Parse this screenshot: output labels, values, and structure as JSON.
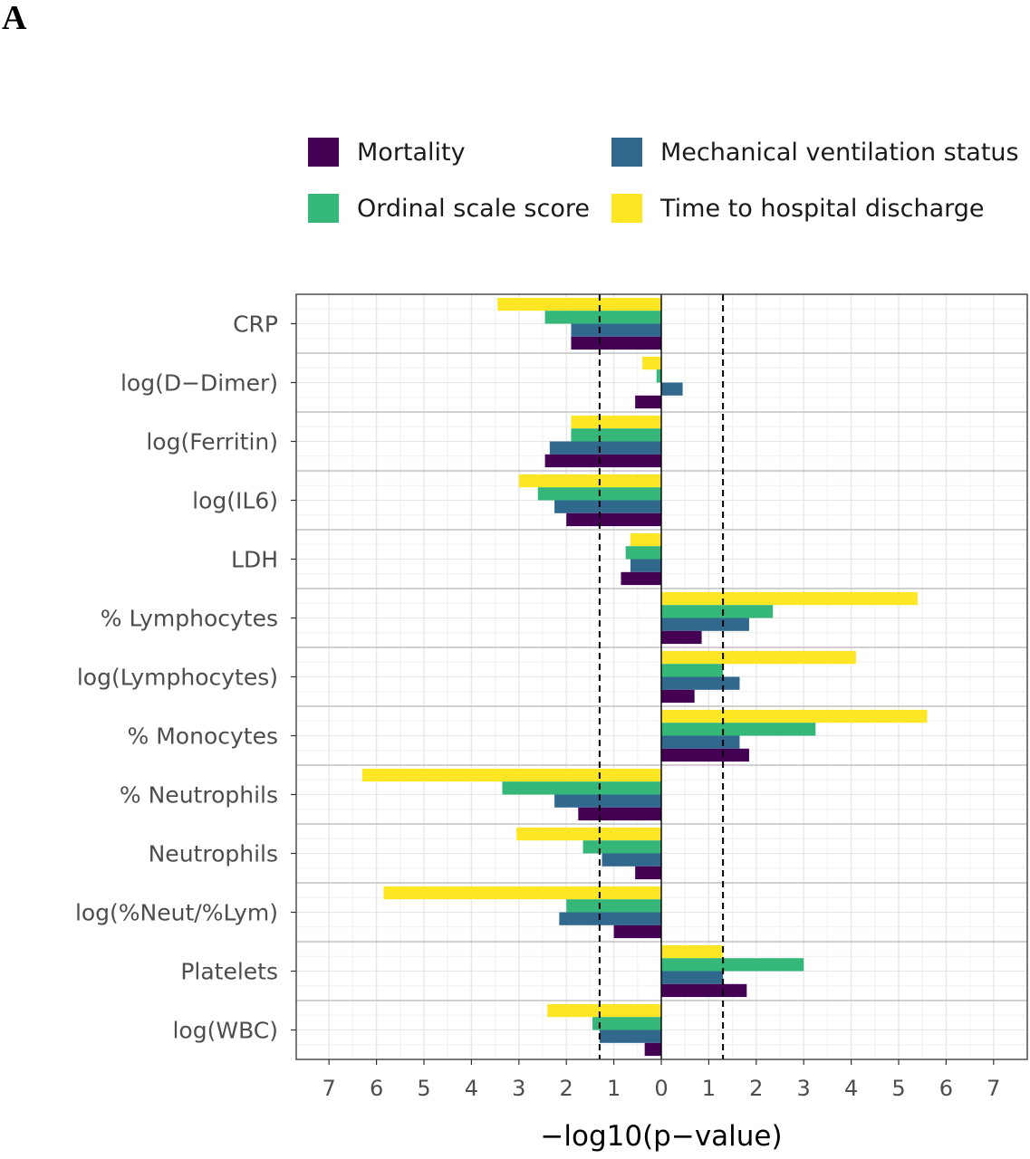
{
  "panel_label": "A",
  "legend": [
    {
      "name": "Mortality",
      "color": "#440154"
    },
    {
      "name": "Mechanical ventilation status",
      "color": "#31688e"
    },
    {
      "name": "Ordinal scale score",
      "color": "#35b779"
    },
    {
      "name": "Time to hospital discharge",
      "color": "#fde725"
    }
  ],
  "chart_data": {
    "type": "bar",
    "orientation": "horizontal",
    "xlabel": "−log10(p−value)",
    "xlim": [
      -7,
      7
    ],
    "x_ticks": [
      -7,
      -6,
      -5,
      -4,
      -3,
      -2,
      -1,
      0,
      1,
      2,
      3,
      4,
      5,
      6,
      7
    ],
    "x_tick_labels": [
      "7",
      "6",
      "5",
      "4",
      "3",
      "2",
      "1",
      "0",
      "1",
      "2",
      "3",
      "4",
      "5",
      "6",
      "7"
    ],
    "reference_lines": [
      -1.3,
      1.3
    ],
    "categories": [
      "CRP",
      "log(D−Dimer)",
      "log(Ferritin)",
      "log(IL6)",
      "LDH",
      "% Lymphocytes",
      "log(Lymphocytes)",
      "% Monocytes",
      "% Neutrophils",
      "Neutrophils",
      "log(%Neut/%Lym)",
      "Platelets",
      "log(WBC)"
    ],
    "series": [
      {
        "name": "Time to hospital discharge",
        "color": "#fde725",
        "values": [
          -3.45,
          -0.4,
          -1.9,
          -3.0,
          -0.65,
          5.4,
          4.1,
          5.6,
          -6.3,
          -3.05,
          -5.85,
          1.3,
          -2.4
        ]
      },
      {
        "name": "Ordinal scale score",
        "color": "#35b779",
        "values": [
          -2.45,
          -0.1,
          -1.9,
          -2.6,
          -0.75,
          2.35,
          1.3,
          3.25,
          -3.35,
          -1.65,
          -2.0,
          3.0,
          -1.45
        ]
      },
      {
        "name": "Mechanical ventilation status",
        "color": "#31688e",
        "values": [
          -1.9,
          0.45,
          -2.35,
          -2.25,
          -0.65,
          1.85,
          1.65,
          1.65,
          -2.25,
          -1.25,
          -2.15,
          1.3,
          -1.3
        ]
      },
      {
        "name": "Mortality",
        "color": "#440154",
        "values": [
          -1.9,
          -0.55,
          -2.45,
          -2.0,
          -0.85,
          0.85,
          0.7,
          1.85,
          -1.75,
          -0.55,
          -1.0,
          1.8,
          -0.35
        ]
      }
    ]
  }
}
